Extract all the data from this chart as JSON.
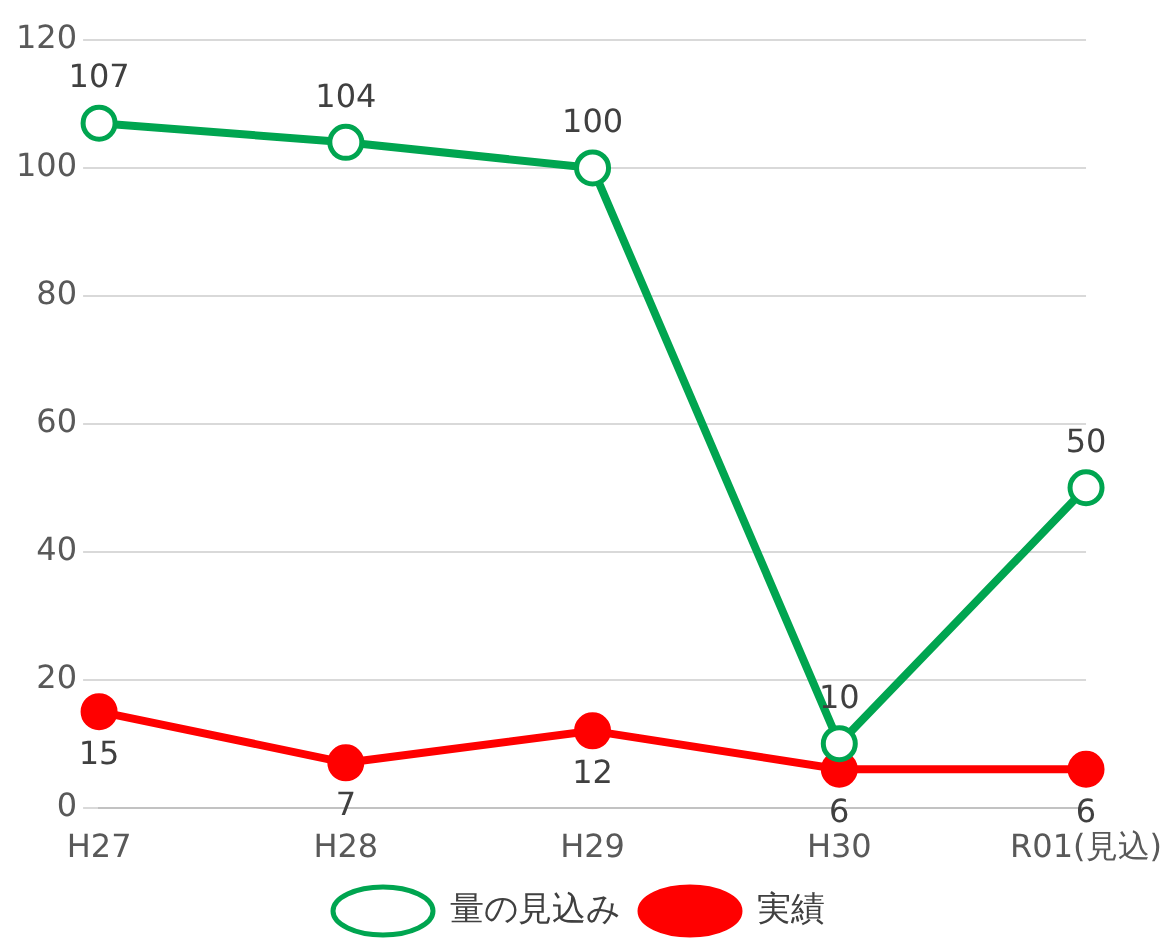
{
  "chart_data": {
    "type": "line",
    "categories": [
      "H27",
      "H28",
      "H29",
      "H30",
      "R01(見込)"
    ],
    "series": [
      {
        "name": "量の見込み",
        "color": "#00a550",
        "values": [
          107,
          104,
          100,
          10,
          50
        ],
        "marker": "circle"
      },
      {
        "name": "実績",
        "color": "#ff0000",
        "values": [
          15,
          7,
          12,
          6,
          6
        ],
        "marker": "circle"
      }
    ],
    "ylim": [
      0,
      120
    ],
    "yticks": [
      0,
      20,
      40,
      60,
      80,
      100,
      120
    ],
    "grid": "y",
    "legend": "bottom",
    "data_labels": true
  }
}
